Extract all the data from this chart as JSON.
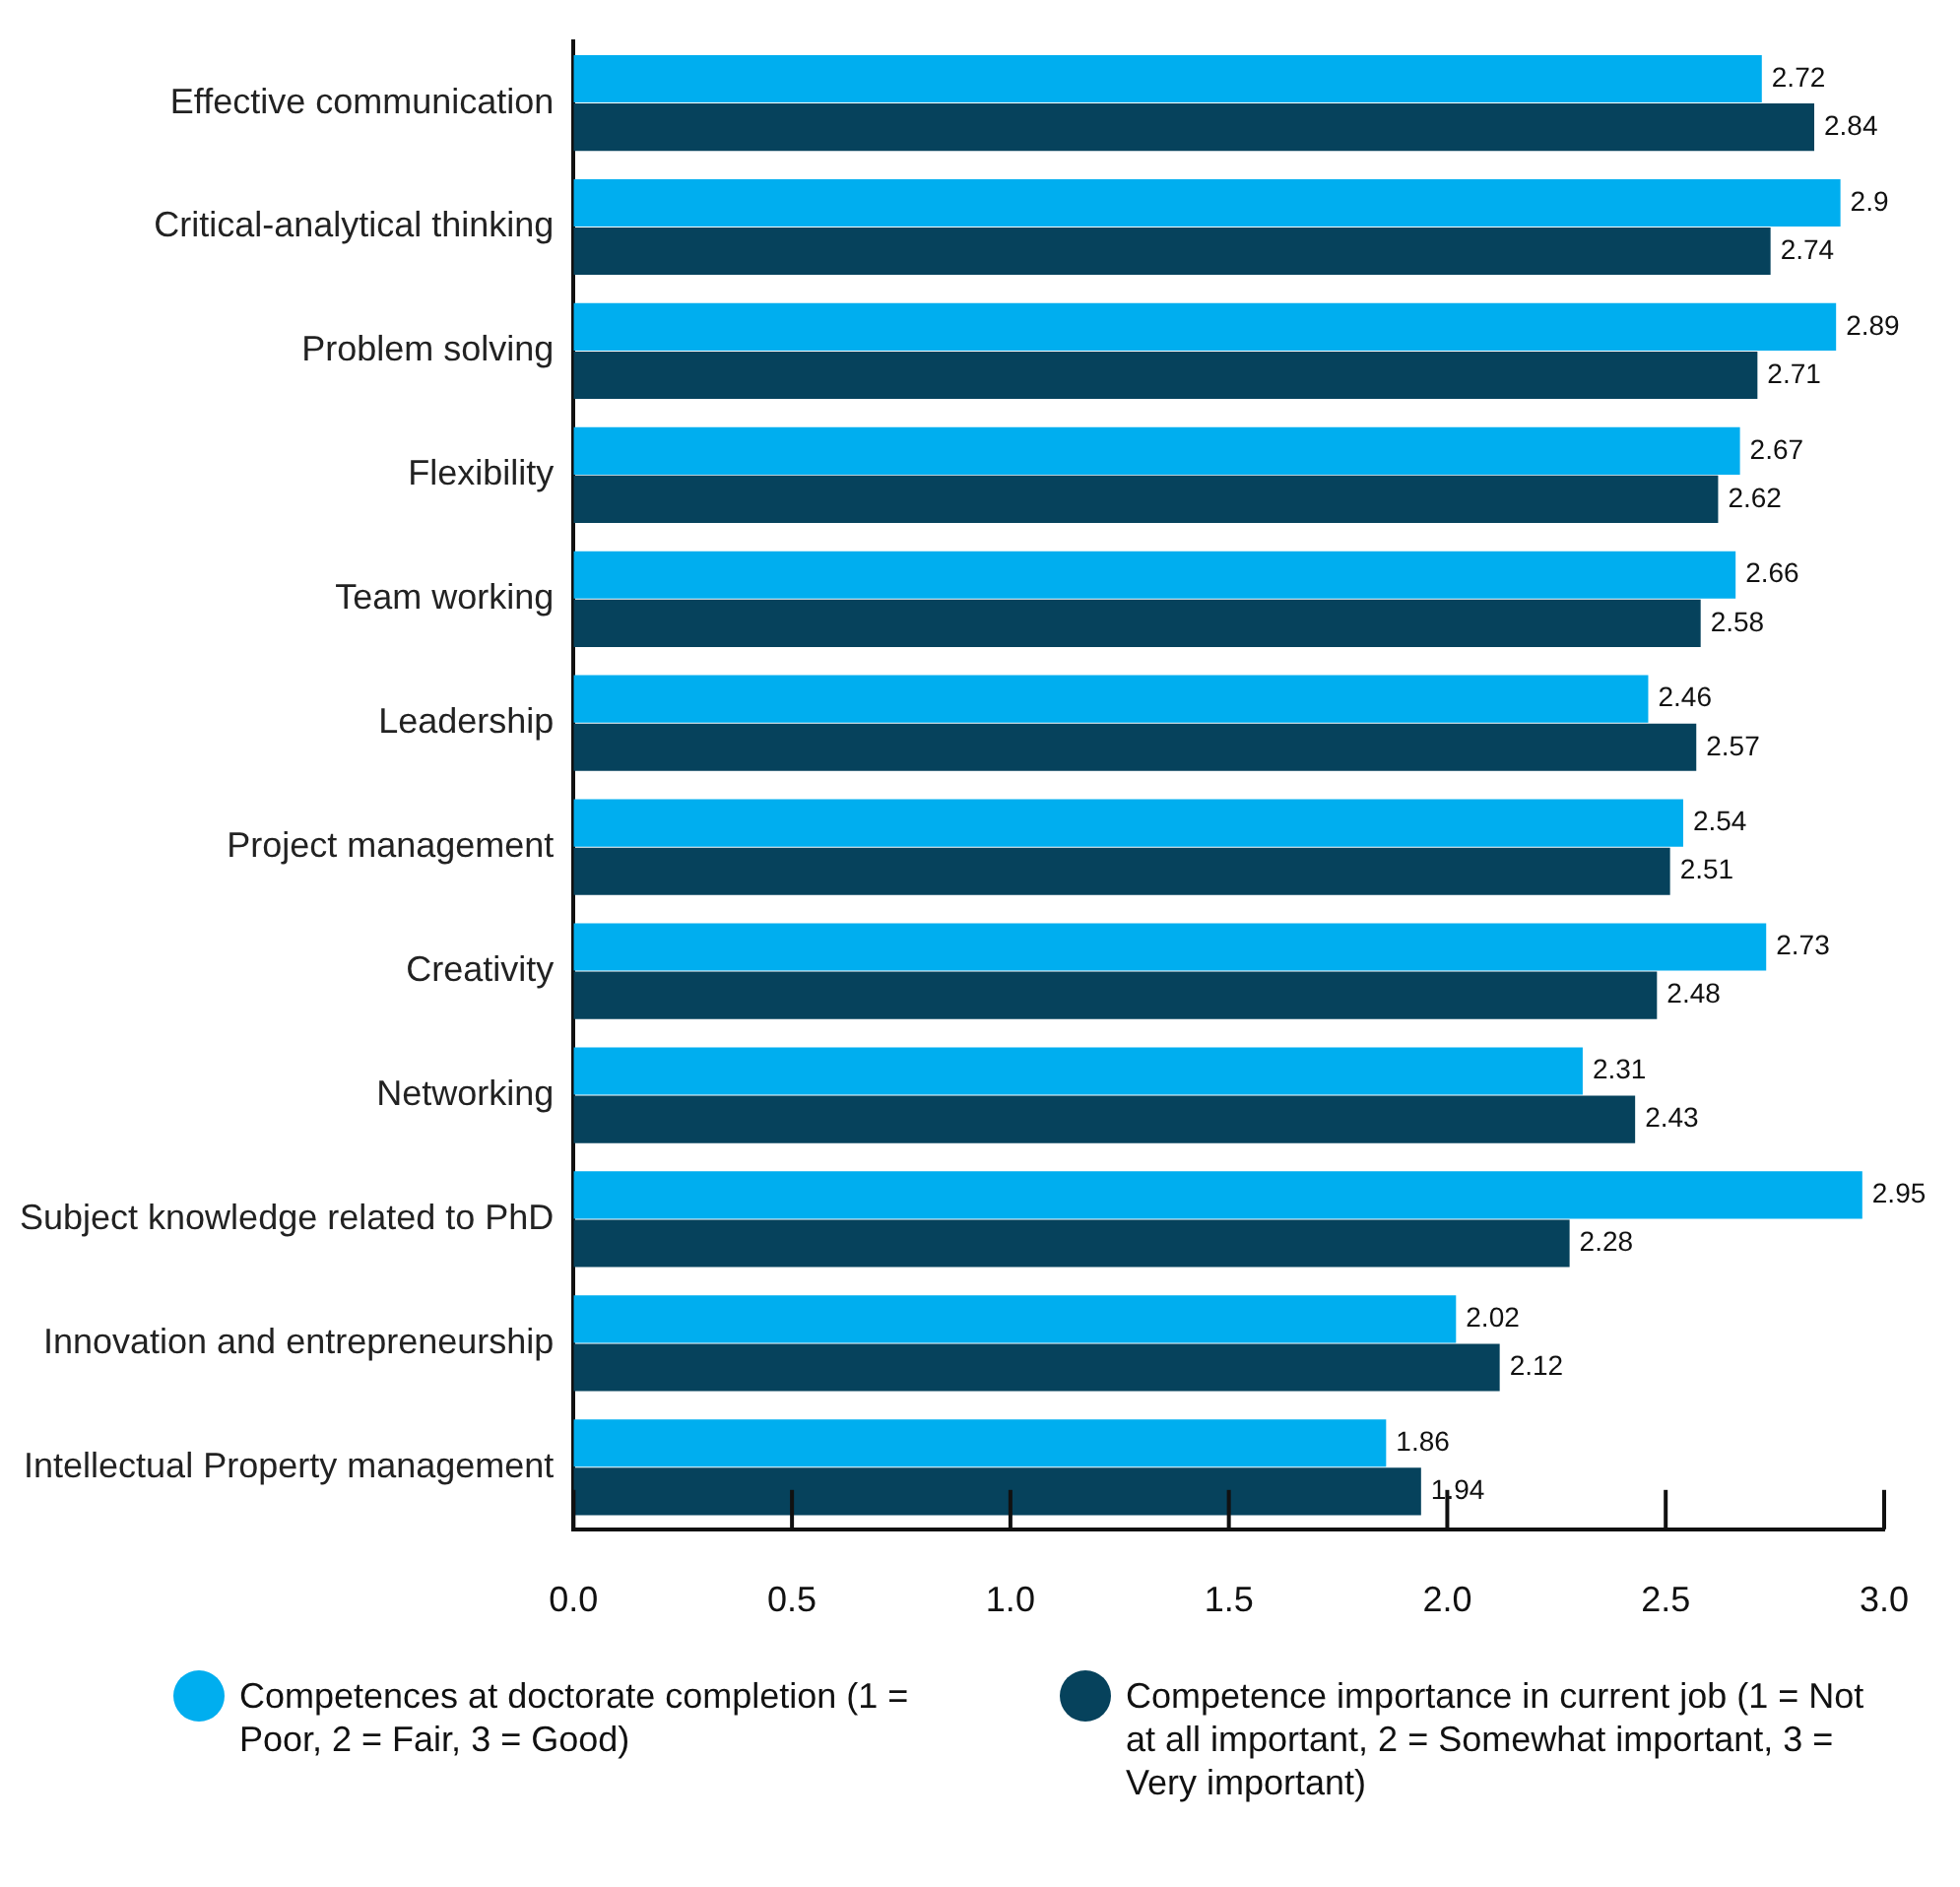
{
  "chart_data": {
    "type": "bar",
    "orientation": "horizontal",
    "categories": [
      "Effective communication",
      "Critical-analytical thinking",
      "Problem solving",
      "Flexibility",
      "Team working",
      "Leadership",
      "Project management",
      "Creativity",
      "Networking",
      "Subject knowledge related to PhD",
      "Innovation and entrepreneurship",
      "Intellectual Property management"
    ],
    "series": [
      {
        "name": "Competences at doctorate completion (1 = Poor, 2 = Fair, 3 = Good)",
        "color": "#00aeef",
        "values": [
          2.72,
          2.9,
          2.89,
          2.67,
          2.66,
          2.46,
          2.54,
          2.73,
          2.31,
          2.95,
          2.02,
          1.86
        ]
      },
      {
        "name": "Competence importance in current job (1 = Not at all important, 2 = Somewhat important, 3 = Very important)",
        "color": "#06425c",
        "values": [
          2.84,
          2.74,
          2.71,
          2.62,
          2.58,
          2.57,
          2.51,
          2.48,
          2.43,
          2.28,
          2.12,
          1.94
        ]
      }
    ],
    "xlim": [
      0,
      3
    ],
    "xticks": [
      {
        "value": 0,
        "label": "0.0"
      },
      {
        "value": 0.5,
        "label": "0.5"
      },
      {
        "value": 1,
        "label": "1.0"
      },
      {
        "value": 1.5,
        "label": "1.5"
      },
      {
        "value": 2,
        "label": "2.0"
      },
      {
        "value": 2.5,
        "label": "2.5"
      },
      {
        "value": 3,
        "label": "3.0"
      }
    ],
    "grid": false,
    "legend": "bottom",
    "data_labels": true
  }
}
